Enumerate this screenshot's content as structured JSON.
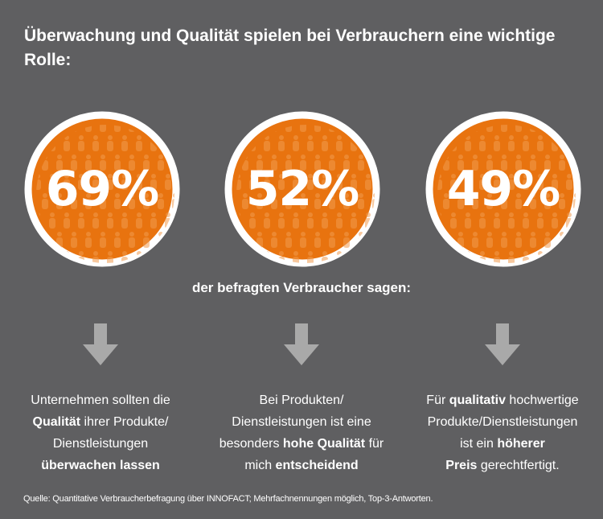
{
  "title": "Überwachung und Qualität spielen bei Verbrauchern eine wichtige Rolle:",
  "stats": [
    {
      "value": "69%"
    },
    {
      "value": "52%"
    },
    {
      "value": "49%"
    }
  ],
  "subtitle": "der befragten Verbraucher sagen:",
  "statements": [
    {
      "lines": [
        [
          {
            "t": "Unternehmen sollten die",
            "b": false
          }
        ],
        [
          {
            "t": "Qualität",
            "b": true
          },
          {
            "t": " ihrer Produkte/",
            "b": false
          }
        ],
        [
          {
            "t": "Dienstleistungen",
            "b": false
          }
        ],
        [
          {
            "t": "überwachen lassen",
            "b": true
          }
        ]
      ]
    },
    {
      "lines": [
        [
          {
            "t": "Bei Produkten/",
            "b": false
          }
        ],
        [
          {
            "t": "Dienstleistungen ist eine",
            "b": false
          }
        ],
        [
          {
            "t": "besonders ",
            "b": false
          },
          {
            "t": "hohe Qualität",
            "b": true
          },
          {
            "t": " für",
            "b": false
          }
        ],
        [
          {
            "t": "mich ",
            "b": false
          },
          {
            "t": "entscheidend",
            "b": true
          }
        ]
      ]
    },
    {
      "lines": [
        [
          {
            "t": "Für ",
            "b": false
          },
          {
            "t": "qualitativ",
            "b": true
          },
          {
            "t": " hochwertige",
            "b": false
          }
        ],
        [
          {
            "t": "Produkte/Dienstleistungen",
            "b": false
          }
        ],
        [
          {
            "t": "ist ein ",
            "b": false
          },
          {
            "t": "höherer",
            "b": true
          }
        ],
        [
          {
            "t": "Preis",
            "b": true
          },
          {
            "t": " gerechtfertigt.",
            "b": false
          }
        ]
      ]
    }
  ],
  "source": "Quelle: Quantitative Verbraucherbefragung über INNOFACT; Mehrfachnennungen möglich, Top-3-Antworten.",
  "colors": {
    "background": "#5f5f61",
    "circle_fill": "#e8730f",
    "circle_ring": "#ffffff",
    "figure_pattern": "#f19a4e",
    "arrow": "#a9a9a9",
    "text": "#ffffff"
  },
  "icons": {
    "stat_background": "people-pattern-icon",
    "arrow": "arrow-down-icon"
  }
}
